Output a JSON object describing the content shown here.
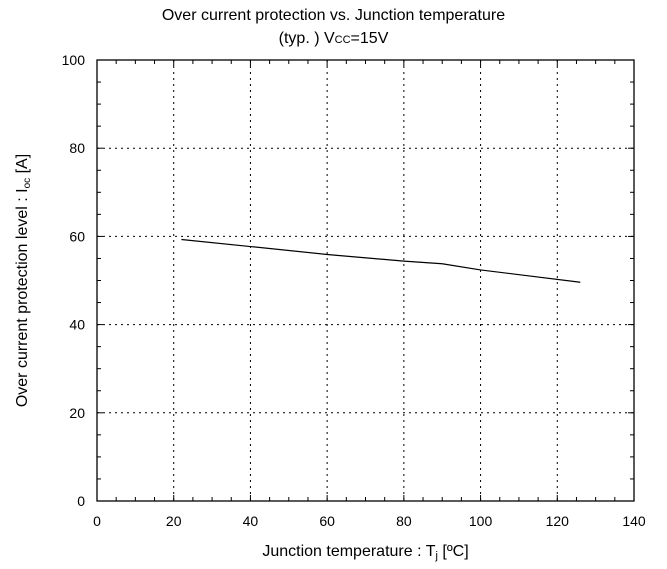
{
  "title_line1": "Over current protection vs. Junction temperature",
  "title_line2_prefix": "(typ. ) V",
  "title_line2_sub": "CC",
  "title_line2_suffix": "=15V",
  "chart_data": {
    "type": "line",
    "xlabel_main": "Junction temperature : T",
    "xlabel_sub": "j",
    "xlabel_tail": " [ºC]",
    "ylabel_main": "Over current protection level : I",
    "ylabel_sub": "oc",
    "ylabel_tail": " [A]",
    "xlim": [
      0,
      140
    ],
    "ylim": [
      0,
      100
    ],
    "xticks": [
      0,
      20,
      40,
      60,
      80,
      100,
      120,
      140
    ],
    "yticks": [
      0,
      20,
      40,
      60,
      80,
      100
    ],
    "grid": true,
    "grid_style": "dotted",
    "series": [
      {
        "x": [
          22,
          40,
          60,
          80,
          90,
          100,
          126
        ],
        "y": [
          59.3,
          57.7,
          55.9,
          54.4,
          53.8,
          52.4,
          49.6
        ]
      }
    ]
  }
}
